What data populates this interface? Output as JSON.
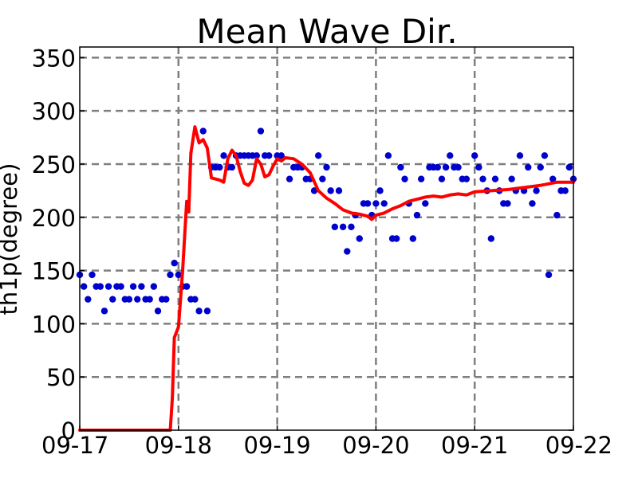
{
  "chart_data": {
    "type": "line",
    "title": "Mean Wave Dir.",
    "xlabel": "",
    "ylabel": "th1p(degree)",
    "x_axis": {
      "type": "date",
      "range": [
        "09-17",
        "09-22"
      ],
      "tick_labels": [
        "09-17",
        "09-18",
        "09-19",
        "09-20",
        "09-21",
        "09-22"
      ]
    },
    "y_axis": {
      "range": [
        0,
        360
      ],
      "ticks": [
        0,
        50,
        100,
        150,
        200,
        250,
        300,
        350
      ]
    },
    "grid": true,
    "legend": "none",
    "series": [
      {
        "style": "points",
        "color": "#0000cc",
        "points": [
          [
            "09-17 00:00",
            146
          ],
          [
            "09-17 01:00",
            135
          ],
          [
            "09-17 02:00",
            123
          ],
          [
            "09-17 03:00",
            146
          ],
          [
            "09-17 04:00",
            135
          ],
          [
            "09-17 05:00",
            135
          ],
          [
            "09-17 06:00",
            112
          ],
          [
            "09-17 07:00",
            135
          ],
          [
            "09-17 08:00",
            123
          ],
          [
            "09-17 09:00",
            135
          ],
          [
            "09-17 10:00",
            135
          ],
          [
            "09-17 11:00",
            123
          ],
          [
            "09-17 12:00",
            123
          ],
          [
            "09-17 13:00",
            135
          ],
          [
            "09-17 14:00",
            123
          ],
          [
            "09-17 15:00",
            135
          ],
          [
            "09-17 16:00",
            123
          ],
          [
            "09-17 17:00",
            123
          ],
          [
            "09-17 18:00",
            135
          ],
          [
            "09-17 19:00",
            112
          ],
          [
            "09-17 20:00",
            123
          ],
          [
            "09-17 21:00",
            123
          ],
          [
            "09-17 22:00",
            146
          ],
          [
            "09-17 23:00",
            157
          ],
          [
            "09-18 00:00",
            146
          ],
          [
            "09-18 01:00",
            135
          ],
          [
            "09-18 02:00",
            135
          ],
          [
            "09-18 03:00",
            123
          ],
          [
            "09-18 04:00",
            123
          ],
          [
            "09-18 05:00",
            112
          ],
          [
            "09-18 06:00",
            281
          ],
          [
            "09-18 07:00",
            112
          ],
          [
            "09-18 08:00",
            247
          ],
          [
            "09-18 09:00",
            247
          ],
          [
            "09-18 10:00",
            247
          ],
          [
            "09-18 11:00",
            258
          ],
          [
            "09-18 12:00",
            247
          ],
          [
            "09-18 13:00",
            247
          ],
          [
            "09-18 14:00",
            258
          ],
          [
            "09-18 15:00",
            258
          ],
          [
            "09-18 16:00",
            258
          ],
          [
            "09-18 17:00",
            258
          ],
          [
            "09-18 18:00",
            258
          ],
          [
            "09-18 19:00",
            258
          ],
          [
            "09-18 20:00",
            281
          ],
          [
            "09-18 21:00",
            258
          ],
          [
            "09-18 22:00",
            258
          ],
          [
            "09-19 00:00",
            258
          ],
          [
            "09-19 01:00",
            258
          ],
          [
            "09-19 03:00",
            236
          ],
          [
            "09-19 04:00",
            247
          ],
          [
            "09-19 05:00",
            247
          ],
          [
            "09-19 06:00",
            247
          ],
          [
            "09-19 07:00",
            236
          ],
          [
            "09-19 08:00",
            236
          ],
          [
            "09-19 09:00",
            225
          ],
          [
            "09-19 10:00",
            258
          ],
          [
            "09-19 11:00",
            236
          ],
          [
            "09-19 12:00",
            247
          ],
          [
            "09-19 13:00",
            225
          ],
          [
            "09-19 14:00",
            191
          ],
          [
            "09-19 15:00",
            225
          ],
          [
            "09-19 16:00",
            191
          ],
          [
            "09-19 17:00",
            168
          ],
          [
            "09-19 18:00",
            191
          ],
          [
            "09-19 19:00",
            202
          ],
          [
            "09-19 20:00",
            180
          ],
          [
            "09-19 21:00",
            213
          ],
          [
            "09-19 22:00",
            213
          ],
          [
            "09-19 23:00",
            202
          ],
          [
            "09-20 00:00",
            213
          ],
          [
            "09-20 01:00",
            225
          ],
          [
            "09-20 02:00",
            213
          ],
          [
            "09-20 03:00",
            258
          ],
          [
            "09-20 04:00",
            180
          ],
          [
            "09-20 05:00",
            180
          ],
          [
            "09-20 06:00",
            247
          ],
          [
            "09-20 07:00",
            236
          ],
          [
            "09-20 08:00",
            213
          ],
          [
            "09-20 09:00",
            180
          ],
          [
            "09-20 10:00",
            202
          ],
          [
            "09-20 11:00",
            236
          ],
          [
            "09-20 12:00",
            213
          ],
          [
            "09-20 13:00",
            247
          ],
          [
            "09-20 14:00",
            247
          ],
          [
            "09-20 15:00",
            247
          ],
          [
            "09-20 16:00",
            236
          ],
          [
            "09-20 17:00",
            247
          ],
          [
            "09-20 18:00",
            258
          ],
          [
            "09-20 19:00",
            247
          ],
          [
            "09-20 20:00",
            247
          ],
          [
            "09-20 21:00",
            236
          ],
          [
            "09-20 22:00",
            236
          ],
          [
            "09-21 00:00",
            258
          ],
          [
            "09-21 01:00",
            247
          ],
          [
            "09-21 02:00",
            236
          ],
          [
            "09-21 03:00",
            225
          ],
          [
            "09-21 04:00",
            180
          ],
          [
            "09-21 05:00",
            236
          ],
          [
            "09-21 06:00",
            225
          ],
          [
            "09-21 07:00",
            213
          ],
          [
            "09-21 08:00",
            213
          ],
          [
            "09-21 09:00",
            236
          ],
          [
            "09-21 10:00",
            225
          ],
          [
            "09-21 11:00",
            258
          ],
          [
            "09-21 12:00",
            225
          ],
          [
            "09-21 13:00",
            247
          ],
          [
            "09-21 14:00",
            213
          ],
          [
            "09-21 15:00",
            225
          ],
          [
            "09-21 16:00",
            247
          ],
          [
            "09-21 17:00",
            258
          ],
          [
            "09-21 18:00",
            146
          ],
          [
            "09-21 19:00",
            236
          ],
          [
            "09-21 20:00",
            202
          ],
          [
            "09-21 21:00",
            225
          ],
          [
            "09-21 22:00",
            225
          ],
          [
            "09-21 23:00",
            247
          ],
          [
            "09-22 00:00",
            236
          ]
        ]
      },
      {
        "style": "line",
        "color": "#ff0000",
        "points": [
          [
            "09-17 00:00",
            0
          ],
          [
            "09-17 22:00",
            0
          ],
          [
            "09-17 22:30",
            30
          ],
          [
            "09-17 23:00",
            87
          ],
          [
            "09-18 00:00",
            97
          ],
          [
            "09-18 01:00",
            150
          ],
          [
            "09-18 02:00",
            215
          ],
          [
            "09-18 02:30",
            205
          ],
          [
            "09-18 03:00",
            260
          ],
          [
            "09-18 04:00",
            285
          ],
          [
            "09-18 05:00",
            270
          ],
          [
            "09-18 06:00",
            273
          ],
          [
            "09-18 07:00",
            265
          ],
          [
            "09-18 08:00",
            237
          ],
          [
            "09-18 10:00",
            235
          ],
          [
            "09-18 11:00",
            233
          ],
          [
            "09-18 12:00",
            255
          ],
          [
            "09-18 13:00",
            263
          ],
          [
            "09-18 14:00",
            258
          ],
          [
            "09-18 15:00",
            243
          ],
          [
            "09-18 16:00",
            232
          ],
          [
            "09-18 17:00",
            230
          ],
          [
            "09-18 18:00",
            235
          ],
          [
            "09-18 19:00",
            255
          ],
          [
            "09-18 20:00",
            250
          ],
          [
            "09-18 21:00",
            238
          ],
          [
            "09-18 22:00",
            240
          ],
          [
            "09-18 23:00",
            248
          ],
          [
            "09-19 00:00",
            255
          ],
          [
            "09-19 01:00",
            253
          ],
          [
            "09-19 02:00",
            256
          ],
          [
            "09-19 04:00",
            255
          ],
          [
            "09-19 06:00",
            250
          ],
          [
            "09-19 08:00",
            242
          ],
          [
            "09-19 10:00",
            225
          ],
          [
            "09-19 12:00",
            218
          ],
          [
            "09-19 14:00",
            213
          ],
          [
            "09-19 16:00",
            207
          ],
          [
            "09-19 18:00",
            204
          ],
          [
            "09-19 20:00",
            203
          ],
          [
            "09-19 22:00",
            201
          ],
          [
            "09-19 23:00",
            198
          ],
          [
            "09-20 00:00",
            202
          ],
          [
            "09-20 02:00",
            204
          ],
          [
            "09-20 04:00",
            208
          ],
          [
            "09-20 06:00",
            211
          ],
          [
            "09-20 08:00",
            215
          ],
          [
            "09-20 10:00",
            217
          ],
          [
            "09-20 12:00",
            219
          ],
          [
            "09-20 14:00",
            220
          ],
          [
            "09-20 16:00",
            219
          ],
          [
            "09-20 18:00",
            221
          ],
          [
            "09-20 20:00",
            222
          ],
          [
            "09-20 22:00",
            221
          ],
          [
            "09-21 00:00",
            224
          ],
          [
            "09-21 04:00",
            225
          ],
          [
            "09-21 08:00",
            226
          ],
          [
            "09-21 12:00",
            228
          ],
          [
            "09-21 16:00",
            230
          ],
          [
            "09-21 20:00",
            233
          ],
          [
            "09-22 00:00",
            233
          ]
        ]
      }
    ]
  }
}
